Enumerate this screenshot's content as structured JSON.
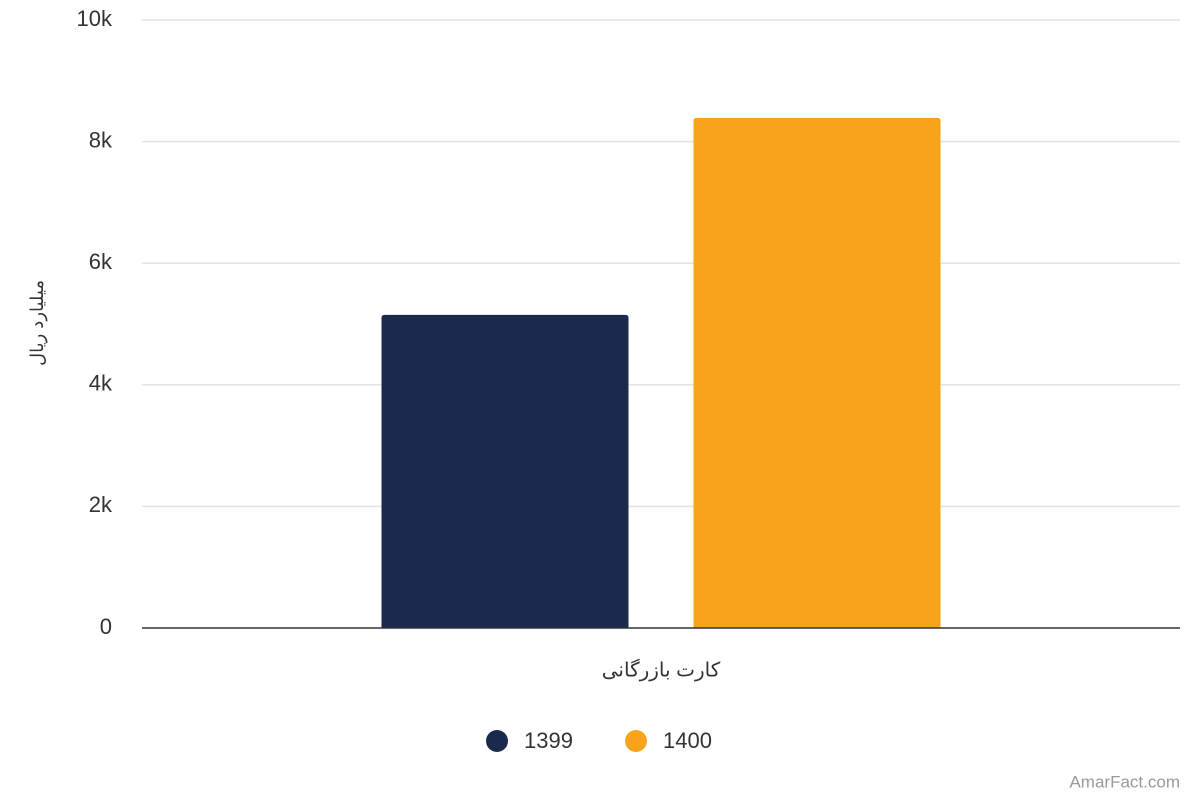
{
  "chart_data": {
    "type": "bar",
    "y_label": "میلیارد ریال",
    "categories": [
      "کارت بازرگانی"
    ],
    "series": [
      {
        "name": "1399",
        "color": "#1b2a4c",
        "values": [
          5150
        ]
      },
      {
        "name": "1400",
        "color": "#f9a31a",
        "values": [
          8390
        ]
      }
    ],
    "ylim": [
      0,
      10000
    ],
    "yticks": [
      0,
      {
        "value": 2000,
        "label": "2k"
      },
      {
        "value": 4000,
        "label": "4k"
      },
      {
        "value": 6000,
        "label": "6k"
      },
      {
        "value": 8000,
        "label": "8k"
      },
      {
        "value": 10000,
        "label": "10k"
      }
    ],
    "grid": true,
    "legend": "bottom"
  },
  "credit": "AmarFact.com"
}
